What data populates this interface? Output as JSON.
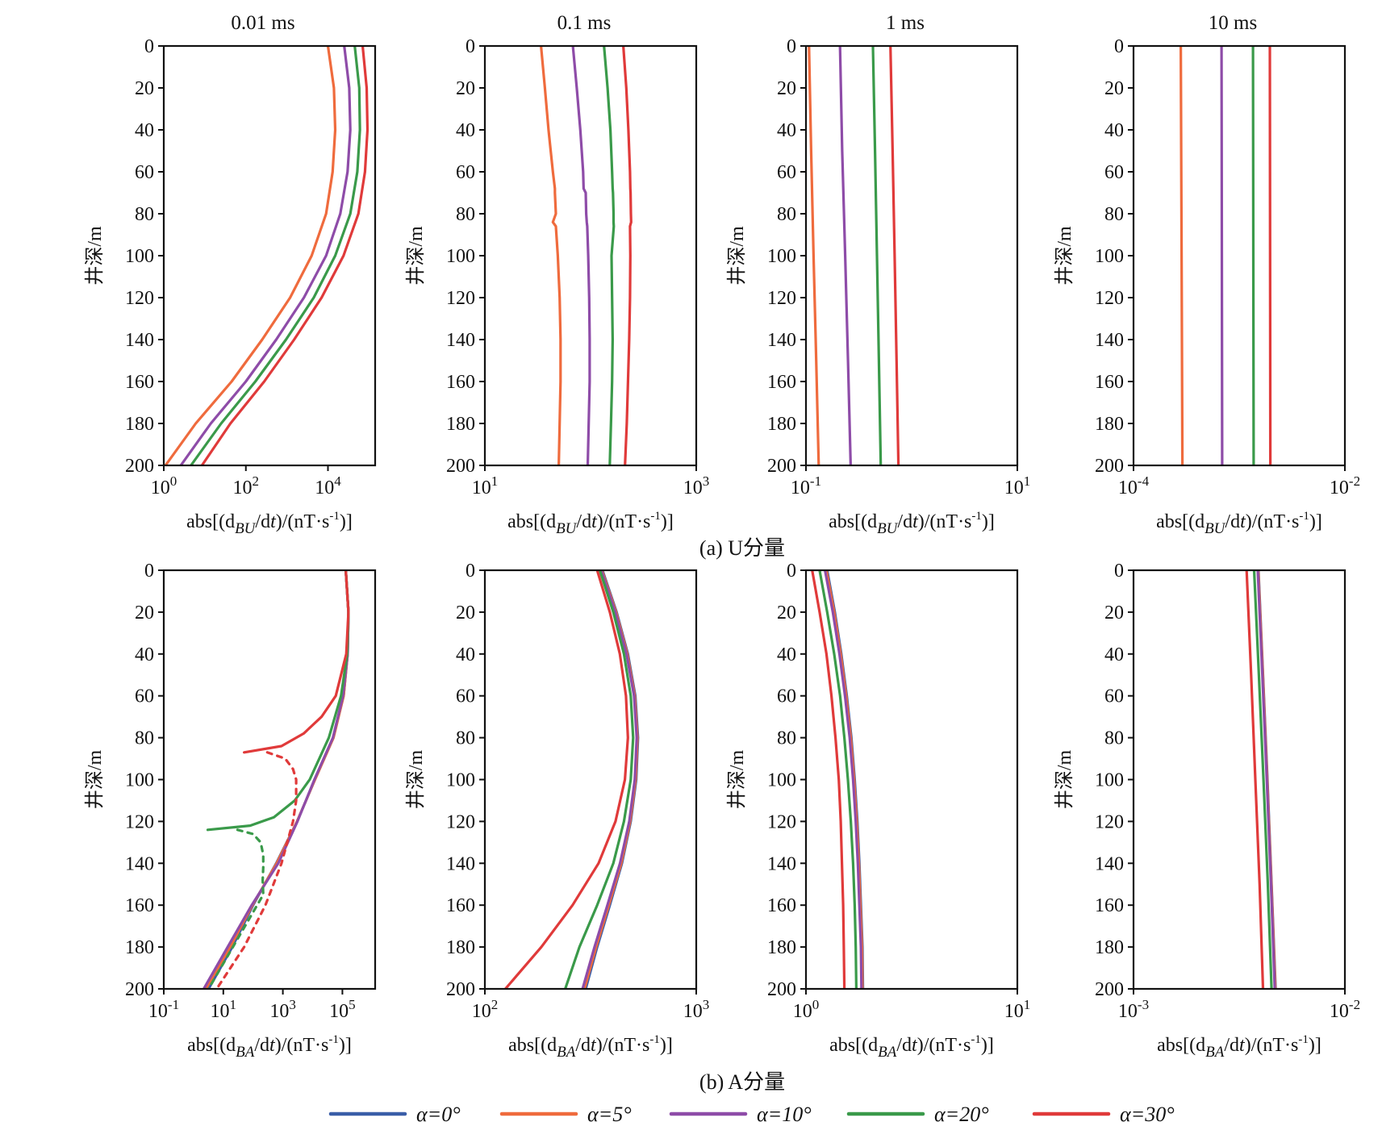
{
  "figure": {
    "caption_a": "(a) U分量",
    "caption_b": "(b) A分量"
  },
  "legend": [
    {
      "label": "α=0°",
      "color": "#3a5ea8"
    },
    {
      "label": "α=5°",
      "color": "#ef6b3d"
    },
    {
      "label": "α=10°",
      "color": "#8e4ca8"
    },
    {
      "label": "α=20°",
      "color": "#3a9a4a"
    },
    {
      "label": "α=30°",
      "color": "#e03a3a"
    }
  ],
  "chart_data": [
    {
      "id": "a1",
      "type": "line",
      "row": "a",
      "title": "0.01 ms",
      "xlabel": "abs[(dBU/dt)/(nT·s-1)]",
      "ylabel": "井深/m",
      "xscale": "log",
      "xlim_log10": [
        0,
        5.15
      ],
      "xticks_log10": [
        0,
        2,
        4
      ],
      "xtick_labels": [
        "10^0",
        "10^2",
        "10^4"
      ],
      "ylim": [
        0,
        200
      ],
      "yinverted": true,
      "yticks": [
        0,
        20,
        40,
        60,
        80,
        100,
        120,
        140,
        160,
        180,
        200
      ],
      "depth": [
        0,
        20,
        40,
        60,
        80,
        100,
        120,
        140,
        160,
        180,
        200
      ],
      "series": [
        {
          "name": "α=5°",
          "color": "#ef6b3d",
          "values": [
            10000,
            14000,
            15000,
            13000,
            9000,
            4000,
            1200,
            250,
            45,
            6,
            1.1
          ]
        },
        {
          "name": "α=10°",
          "color": "#8e4ca8",
          "values": [
            25000,
            33000,
            35000,
            30000,
            20000,
            9000,
            2600,
            550,
            100,
            14,
            2.6
          ]
        },
        {
          "name": "α=20°",
          "color": "#3a9a4a",
          "values": [
            45000,
            58000,
            60000,
            52000,
            35000,
            15000,
            4500,
            950,
            170,
            25,
            4.6
          ]
        },
        {
          "name": "α=30°",
          "color": "#e03a3a",
          "values": [
            70000,
            88000,
            92000,
            80000,
            55000,
            24000,
            7000,
            1500,
            280,
            42,
            8.5
          ]
        }
      ]
    },
    {
      "id": "a2",
      "type": "line",
      "row": "a",
      "title": "0.1 ms",
      "xlabel": "abs[(dBU/dt)/(nT·s-1)]",
      "ylabel": "井深/m",
      "xscale": "log",
      "xlim_log10": [
        1,
        3
      ],
      "xticks_log10": [
        1,
        3
      ],
      "xtick_labels": [
        "10^1",
        "10^3"
      ],
      "ylim": [
        0,
        200
      ],
      "yinverted": true,
      "yticks": [
        0,
        20,
        40,
        60,
        80,
        100,
        120,
        140,
        160,
        180,
        200
      ],
      "depth": [
        0,
        20,
        40,
        60,
        68,
        70,
        80,
        84,
        86,
        100,
        120,
        140,
        160,
        180,
        200
      ],
      "series": [
        {
          "name": "α=5°",
          "color": "#ef6b3d",
          "values": [
            34,
            37,
            40,
            44,
            46,
            46,
            47,
            44,
            47,
            49,
            51,
            52,
            52,
            51,
            50
          ]
        },
        {
          "name": "α=10°",
          "color": "#8e4ca8",
          "values": [
            68,
            74,
            80,
            85,
            86,
            90,
            91,
            92,
            93,
            95,
            97,
            98,
            98,
            96,
            94
          ]
        },
        {
          "name": "α=20°",
          "color": "#3a9a4a",
          "values": [
            134,
            145,
            154,
            160,
            162,
            163,
            165,
            165,
            166,
            158,
            160,
            162,
            160,
            156,
            152
          ]
        },
        {
          "name": "α=30°",
          "color": "#e03a3a",
          "values": [
            204,
            218,
            228,
            236,
            238,
            239,
            241,
            242,
            236,
            238,
            236,
            232,
            226,
            220,
            212
          ]
        }
      ]
    },
    {
      "id": "a3",
      "type": "line",
      "row": "a",
      "title": "1 ms",
      "xlabel": "abs[(dBU/dt)/(nT·s-1)]",
      "ylabel": "井深/m",
      "xscale": "log",
      "xlim_log10": [
        -1,
        1
      ],
      "xticks_log10": [
        -1,
        1
      ],
      "xtick_labels": [
        "10^-1",
        "10^1"
      ],
      "ylim": [
        0,
        200
      ],
      "yinverted": true,
      "yticks": [
        0,
        20,
        40,
        60,
        80,
        100,
        120,
        140,
        160,
        180,
        200
      ],
      "depth": [
        0,
        50,
        100,
        150,
        200
      ],
      "series": [
        {
          "name": "α=5°",
          "color": "#ef6b3d",
          "values": [
            0.107,
            0.112,
            0.118,
            0.125,
            0.132
          ]
        },
        {
          "name": "α=10°",
          "color": "#8e4ca8",
          "values": [
            0.21,
            0.22,
            0.235,
            0.25,
            0.265
          ]
        },
        {
          "name": "α=20°",
          "color": "#3a9a4a",
          "values": [
            0.43,
            0.45,
            0.47,
            0.49,
            0.51
          ]
        },
        {
          "name": "α=30°",
          "color": "#e03a3a",
          "values": [
            0.63,
            0.66,
            0.69,
            0.72,
            0.75
          ]
        }
      ]
    },
    {
      "id": "a4",
      "type": "line",
      "row": "a",
      "title": "10 ms",
      "xlabel": "abs[(dBU/dt)/(nT·s-1)]",
      "ylabel": "井深/m",
      "xscale": "log",
      "xlim_log10": [
        -4,
        -2
      ],
      "xticks_log10": [
        -4,
        -2
      ],
      "xtick_labels": [
        "10^-4",
        "10^-2"
      ],
      "ylim": [
        0,
        200
      ],
      "yinverted": true,
      "yticks": [
        0,
        20,
        40,
        60,
        80,
        100,
        120,
        140,
        160,
        180,
        200
      ],
      "depth": [
        0,
        100,
        200
      ],
      "series": [
        {
          "name": "α=5°",
          "color": "#ef6b3d",
          "values": [
            0.00028,
            0.000285,
            0.00029
          ]
        },
        {
          "name": "α=10°",
          "color": "#8e4ca8",
          "values": [
            0.00068,
            0.000685,
            0.00069
          ]
        },
        {
          "name": "α=20°",
          "color": "#3a9a4a",
          "values": [
            0.00135,
            0.00136,
            0.00137
          ]
        },
        {
          "name": "α=30°",
          "color": "#e03a3a",
          "values": [
            0.00195,
            0.00196,
            0.00197
          ]
        }
      ]
    },
    {
      "id": "b1",
      "type": "line",
      "row": "b",
      "title": "",
      "xlabel": "abs[(dBA/dt)/(nT·s-1)]",
      "ylabel": "井深/m",
      "xscale": "log",
      "xlim_log10": [
        -1,
        6.1
      ],
      "xticks_log10": [
        -1,
        1,
        3,
        5
      ],
      "xtick_labels": [
        "10^-1",
        "10^1",
        "10^3",
        "10^5"
      ],
      "ylim": [
        0,
        200
      ],
      "yinverted": true,
      "yticks": [
        0,
        20,
        40,
        60,
        80,
        100,
        120,
        140,
        160,
        180,
        200
      ],
      "series": [
        {
          "name": "α=0°",
          "color": "#3a5ea8",
          "dashed": false,
          "depth": [
            0,
            20,
            40,
            60,
            80,
            100,
            120,
            140,
            160,
            180,
            200
          ],
          "values": [
            130000,
            160000,
            150000,
            110000,
            50000,
            12000,
            3000,
            600,
            100,
            20,
            3.2
          ]
        },
        {
          "name": "α=5°",
          "color": "#ef6b3d",
          "dashed": false,
          "depth": [
            0,
            20,
            40,
            60,
            80,
            100,
            120,
            140,
            160,
            180,
            200
          ],
          "values": [
            130000,
            160000,
            150000,
            110000,
            50000,
            12000,
            3000,
            620,
            95,
            17,
            2.6
          ]
        },
        {
          "name": "α=10°",
          "color": "#8e4ca8",
          "dashed": false,
          "depth": [
            0,
            20,
            40,
            60,
            80,
            100,
            120,
            140,
            160,
            180,
            200
          ],
          "values": [
            130000,
            160000,
            150000,
            105000,
            48000,
            11500,
            3100,
            700,
            90,
            14,
            2.2
          ]
        },
        {
          "name": "α=20°",
          "color": "#3a9a4a",
          "dashed": false,
          "depth": [
            0,
            20,
            40,
            60,
            80,
            100,
            110,
            118,
            122,
            124
          ],
          "values": [
            130000,
            160000,
            145000,
            90000,
            35000,
            8000,
            2500,
            500,
            80,
            3
          ]
        },
        {
          "name": "α=20° (sign change)",
          "color": "#3a9a4a",
          "dashed": true,
          "depth": [
            124,
            126,
            130,
            136,
            142,
            148,
            155,
            200
          ],
          "values": [
            30,
            100,
            180,
            220,
            220,
            210,
            220,
            3.2
          ]
        },
        {
          "name": "α=30°",
          "color": "#e03a3a",
          "dashed": false,
          "depth": [
            0,
            20,
            40,
            60,
            70,
            78,
            84,
            87
          ],
          "values": [
            130000,
            160000,
            135000,
            60000,
            20000,
            5000,
            900,
            50
          ]
        },
        {
          "name": "α=30° (sign change)",
          "color": "#e03a3a",
          "dashed": true,
          "depth": [
            87,
            90,
            95,
            100,
            110,
            120,
            140,
            160,
            180,
            200
          ],
          "values": [
            300,
            1200,
            2200,
            2800,
            2800,
            2200,
            900,
            260,
            50,
            6
          ]
        }
      ]
    },
    {
      "id": "b2",
      "type": "line",
      "row": "b",
      "title": "",
      "xlabel": "abs[(dBA/dt)/(nT·s-1)]",
      "ylabel": "井深/m",
      "xscale": "log",
      "xlim_log10": [
        2,
        3
      ],
      "xticks_log10": [
        2,
        3
      ],
      "xtick_labels": [
        "10^2",
        "10^3"
      ],
      "ylim": [
        0,
        200
      ],
      "yinverted": true,
      "yticks": [
        0,
        20,
        40,
        60,
        80,
        100,
        120,
        140,
        160,
        180,
        200
      ],
      "depth": [
        0,
        20,
        40,
        60,
        80,
        100,
        120,
        140,
        160,
        180,
        200
      ],
      "series": [
        {
          "name": "α=0°",
          "color": "#3a5ea8",
          "values": [
            360,
            420,
            475,
            515,
            530,
            520,
            490,
            445,
            390,
            340,
            300
          ]
        },
        {
          "name": "α=5°",
          "color": "#ef6b3d",
          "values": [
            358,
            418,
            472,
            512,
            527,
            517,
            487,
            442,
            386,
            336,
            296
          ]
        },
        {
          "name": "α=10°",
          "color": "#8e4ca8",
          "values": [
            355,
            414,
            468,
            508,
            523,
            512,
            482,
            436,
            380,
            330,
            290
          ]
        },
        {
          "name": "α=20°",
          "color": "#3a9a4a",
          "values": [
            350,
            405,
            455,
            490,
            503,
            490,
            455,
            405,
            340,
            280,
            240
          ]
        },
        {
          "name": "α=30°",
          "color": "#e03a3a",
          "values": [
            340,
            390,
            435,
            465,
            475,
            460,
            415,
            345,
            260,
            185,
            125
          ]
        }
      ]
    },
    {
      "id": "b3",
      "type": "line",
      "row": "b",
      "title": "",
      "xlabel": "abs[(dBA/dt)/(nT·s-1)]",
      "ylabel": "井深/m",
      "xscale": "log",
      "xlim_log10": [
        0,
        1
      ],
      "xticks_log10": [
        0,
        1
      ],
      "xtick_labels": [
        "10^0",
        "10^1"
      ],
      "ylim": [
        0,
        200
      ],
      "yinverted": true,
      "yticks": [
        0,
        20,
        40,
        60,
        80,
        100,
        120,
        140,
        160,
        180,
        200
      ],
      "depth": [
        0,
        20,
        40,
        60,
        80,
        100,
        120,
        140,
        160,
        180,
        200
      ],
      "series": [
        {
          "name": "α=0°",
          "color": "#3a5ea8",
          "values": [
            1.26,
            1.37,
            1.47,
            1.56,
            1.64,
            1.7,
            1.75,
            1.79,
            1.82,
            1.85,
            1.86
          ]
        },
        {
          "name": "α=5°",
          "color": "#ef6b3d",
          "values": [
            1.25,
            1.36,
            1.46,
            1.55,
            1.63,
            1.69,
            1.74,
            1.78,
            1.81,
            1.84,
            1.85
          ]
        },
        {
          "name": "α=10°",
          "color": "#8e4ca8",
          "values": [
            1.23,
            1.34,
            1.44,
            1.53,
            1.61,
            1.67,
            1.72,
            1.76,
            1.79,
            1.82,
            1.83
          ]
        },
        {
          "name": "α=20°",
          "color": "#3a9a4a",
          "values": [
            1.16,
            1.26,
            1.36,
            1.45,
            1.52,
            1.58,
            1.63,
            1.67,
            1.7,
            1.72,
            1.73
          ]
        },
        {
          "name": "α=30°",
          "color": "#e03a3a",
          "values": [
            1.07,
            1.16,
            1.25,
            1.32,
            1.38,
            1.43,
            1.46,
            1.48,
            1.5,
            1.51,
            1.52
          ]
        }
      ]
    },
    {
      "id": "b4",
      "type": "line",
      "row": "b",
      "title": "",
      "xlabel": "abs[(dBA/dt)/(nT·s-1)]",
      "ylabel": "井深/m",
      "xscale": "log",
      "xlim_log10": [
        -3,
        -2
      ],
      "xticks_log10": [
        -3,
        -2
      ],
      "xtick_labels": [
        "10^-3",
        "10^-2"
      ],
      "ylim": [
        0,
        200
      ],
      "yinverted": true,
      "yticks": [
        0,
        20,
        40,
        60,
        80,
        100,
        120,
        140,
        160,
        180,
        200
      ],
      "depth": [
        0,
        50,
        100,
        150,
        200
      ],
      "series": [
        {
          "name": "α=0°",
          "color": "#3a5ea8",
          "values": [
            0.0039,
            0.0041,
            0.0043,
            0.0045,
            0.0047
          ]
        },
        {
          "name": "α=5°",
          "color": "#ef6b3d",
          "values": [
            0.00389,
            0.00409,
            0.00429,
            0.00449,
            0.00469
          ]
        },
        {
          "name": "α=10°",
          "color": "#8e4ca8",
          "values": [
            0.00387,
            0.00407,
            0.00427,
            0.00447,
            0.00466
          ]
        },
        {
          "name": "α=20°",
          "color": "#3a9a4a",
          "values": [
            0.00372,
            0.00392,
            0.00412,
            0.00432,
            0.0045
          ]
        },
        {
          "name": "α=30°",
          "color": "#e03a3a",
          "values": [
            0.00343,
            0.0036,
            0.00377,
            0.00395,
            0.0041
          ]
        }
      ]
    }
  ]
}
